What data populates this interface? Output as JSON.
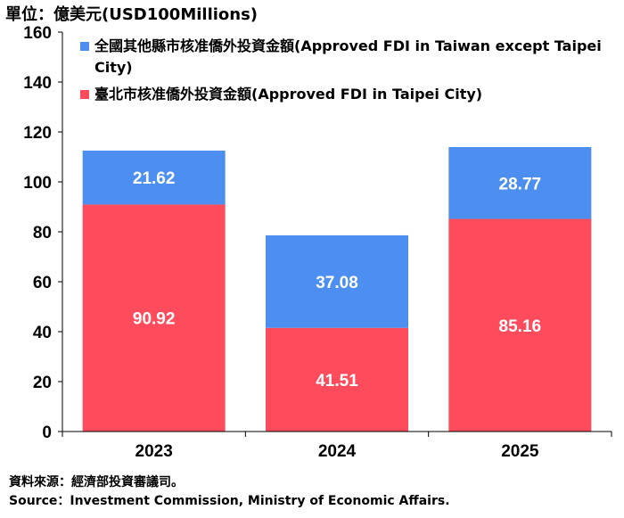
{
  "unit_label": "單位：億美元(USD100Millions)",
  "source_zh": "資料來源：經濟部投資審議司。",
  "source_en": "Source：Investment Commission, Ministry of Economic Affairs.",
  "chart_data": {
    "type": "bar",
    "stacked": true,
    "categories": [
      "2023",
      "2024",
      "2025"
    ],
    "series": [
      {
        "name": "臺北市核准僑外投資金額(Approved FDI in Taipei City)",
        "values": [
          90.92,
          41.51,
          85.16
        ],
        "color": "#ff4b5c"
      },
      {
        "name": "全國其他縣市核准僑外投資金額(Approved FDI in Taiwan except Taipei City)",
        "values": [
          21.62,
          37.08,
          28.77
        ],
        "color": "#4d8ff0"
      }
    ],
    "ylim": [
      0,
      160
    ],
    "yticks": [
      0,
      20,
      40,
      60,
      80,
      100,
      120,
      140,
      160
    ],
    "grid": false,
    "data_labels": true,
    "legend_position": "top"
  }
}
